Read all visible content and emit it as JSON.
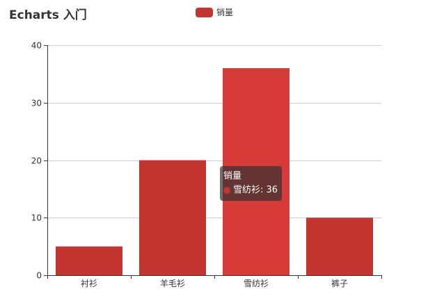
{
  "title": "Echarts 入门",
  "legend": {
    "items": [
      {
        "label": "销量",
        "color": "#c23531"
      }
    ]
  },
  "tooltip": {
    "title": "销量",
    "category": "雪纺衫",
    "value": "36",
    "separator": ": "
  },
  "chart_data": {
    "type": "bar",
    "title": "Echarts 入门",
    "categories": [
      "衬衫",
      "羊毛衫",
      "雪纺衫",
      "裤子"
    ],
    "series": [
      {
        "name": "销量",
        "values": [
          5,
          20,
          36,
          10
        ],
        "color": "#c23531",
        "highlight_color": "#d63b37"
      }
    ],
    "highlighted_index": 2,
    "xlabel": "",
    "ylabel": "",
    "ylim": [
      0,
      40
    ],
    "yticks": [
      0,
      10,
      20,
      30,
      40
    ],
    "grid": true,
    "legend_position": "top-center"
  }
}
